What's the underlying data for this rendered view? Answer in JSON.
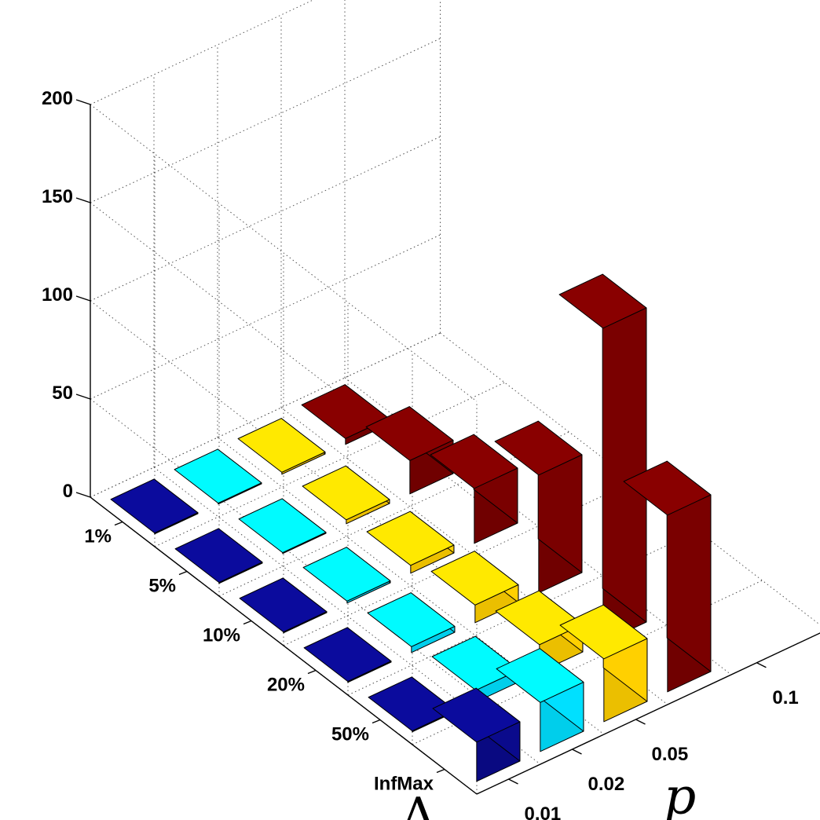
{
  "chart_data": {
    "type": "bar3d",
    "zlim": [
      0,
      200
    ],
    "z_ticks": [
      "0",
      "50",
      "100",
      "150",
      "200"
    ],
    "x_title": "p",
    "y_title": "Δ",
    "p_categories": [
      "0.01",
      "0.02",
      "0.05",
      "0.1"
    ],
    "delta_categories": [
      "1%",
      "5%",
      "10%",
      "20%",
      "50%",
      "InfMax"
    ],
    "colors": {
      "0.01": "#0a0a8c",
      "0.02": "#00e0ff",
      "0.05": "#ffd000",
      "0.1": "#7a0000"
    },
    "series": [
      {
        "p": "0.01",
        "values": [
          0.5,
          0.5,
          0.5,
          0.5,
          0.5,
          20
        ]
      },
      {
        "p": "0.02",
        "values": [
          0.5,
          0.5,
          1,
          3,
          6,
          25
        ]
      },
      {
        "p": "0.05",
        "values": [
          1,
          2,
          4,
          9,
          14,
          32
        ]
      },
      {
        "p": "0.1",
        "values": [
          3,
          17,
          28,
          60,
          160,
          90
        ]
      }
    ]
  }
}
